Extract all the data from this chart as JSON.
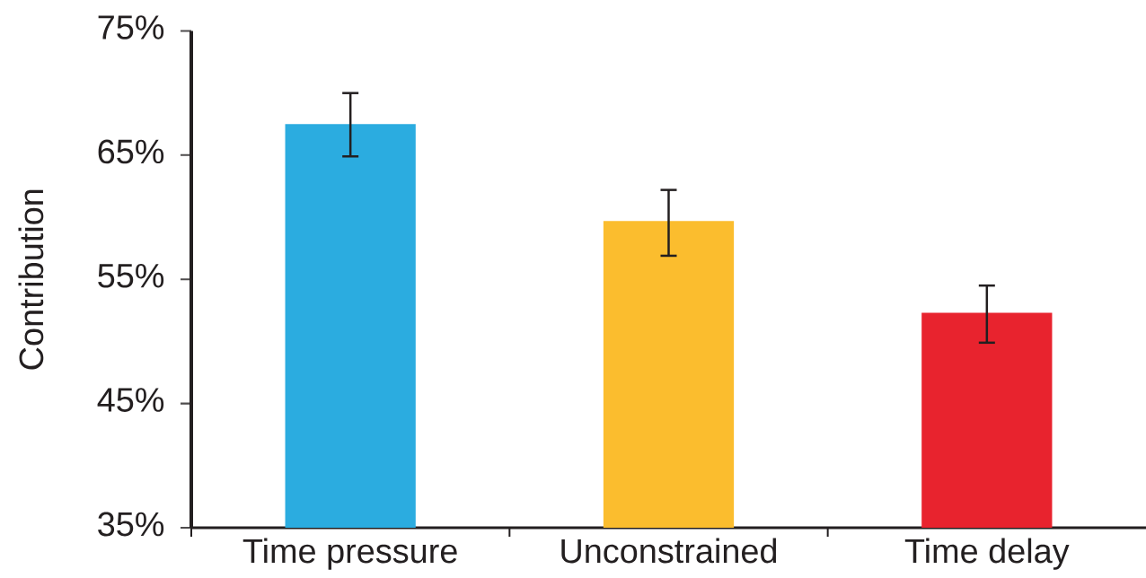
{
  "chart_data": {
    "type": "bar",
    "ylabel": "Contribution",
    "categories": [
      "Time pressure",
      "Unconstrained",
      "Time delay"
    ],
    "values": [
      67.5,
      59.7,
      52.3
    ],
    "colors": [
      "#2BACE0",
      "#FBBD2E",
      "#E8232E"
    ],
    "errors": [
      [
        64.9,
        70.0
      ],
      [
        56.9,
        62.2
      ],
      [
        49.9,
        54.5
      ]
    ],
    "ylim": [
      35,
      75
    ],
    "yticks": [
      {
        "value": 35,
        "label": "35%"
      },
      {
        "value": 45,
        "label": "45%"
      },
      {
        "value": 55,
        "label": "55%"
      },
      {
        "value": 65,
        "label": "65%"
      },
      {
        "value": 75,
        "label": "75%"
      }
    ]
  }
}
